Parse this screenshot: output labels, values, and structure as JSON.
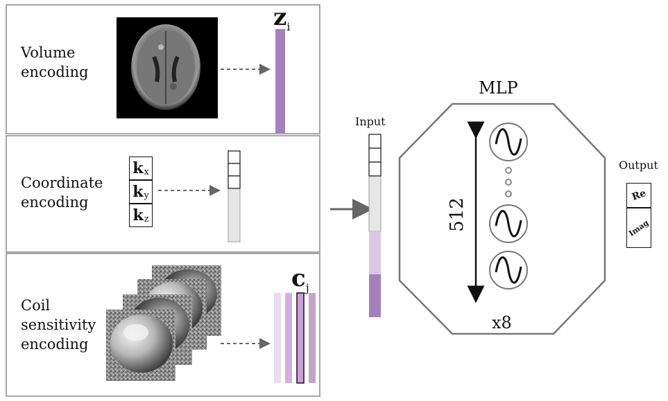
{
  "panels": {
    "volume": {
      "label": "Volume\nencoding",
      "variable": "z",
      "subscript": "i"
    },
    "coordinate": {
      "label": "Coordinate\nencoding",
      "keys": [
        {
          "symbol": "k",
          "subscript": "x"
        },
        {
          "symbol": "k",
          "subscript": "y"
        },
        {
          "symbol": "k",
          "subscript": "z"
        }
      ]
    },
    "coil": {
      "label": "Coil\nsensitivity\nencoding",
      "variable": "c",
      "subscript": "j"
    }
  },
  "input_label": "Input",
  "mlp": {
    "title": "MLP",
    "width_label": "512",
    "depth_label": "x8"
  },
  "output": {
    "label": "Output",
    "real": "Re",
    "imag": "Imag"
  },
  "colors": {
    "purple": "#a67fbd",
    "light_purple": "#dcc6e6",
    "gray": "#e6e6e6",
    "coil_bars": [
      "#eadcf0",
      "#d4aee3",
      "#c9a0dc",
      "#c5a4cc"
    ]
  }
}
